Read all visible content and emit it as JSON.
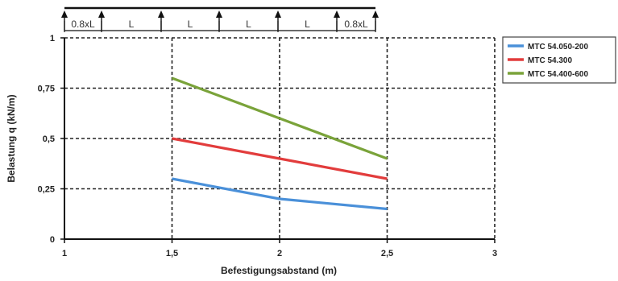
{
  "chart_data": {
    "type": "line",
    "xlabel": "Befestigungsabstand (m)",
    "ylabel": "Belastung q (kN/m)",
    "xlim": [
      1,
      3
    ],
    "ylim": [
      0,
      1
    ],
    "x_ticks": [
      "1",
      "1,5",
      "2",
      "2,5",
      "3"
    ],
    "y_ticks": [
      "0",
      "0,25",
      "0,5",
      "0,75",
      "1"
    ],
    "x_tick_values": [
      1,
      1.5,
      2,
      2.5,
      3
    ],
    "y_tick_values": [
      0,
      0.25,
      0.5,
      0.75,
      1
    ],
    "grid": true,
    "legend_position": "right",
    "series": [
      {
        "name": "MTC 54.050-200",
        "color": "#4a90d9",
        "x": [
          1.5,
          2,
          2.5
        ],
        "y": [
          0.3,
          0.2,
          0.15
        ]
      },
      {
        "name": "MTC 54.300",
        "color": "#e23c3c",
        "x": [
          1.5,
          2,
          2.5
        ],
        "y": [
          0.5,
          0.4,
          0.3
        ]
      },
      {
        "name": "MTC 54.400-600",
        "color": "#7aa33a",
        "x": [
          1.5,
          2,
          2.5
        ],
        "y": [
          0.8,
          0.6,
          0.4
        ]
      }
    ],
    "support_diagram": {
      "labels": [
        "0.8xL",
        "L",
        "L",
        "L",
        "L",
        "0.8xL"
      ]
    }
  }
}
